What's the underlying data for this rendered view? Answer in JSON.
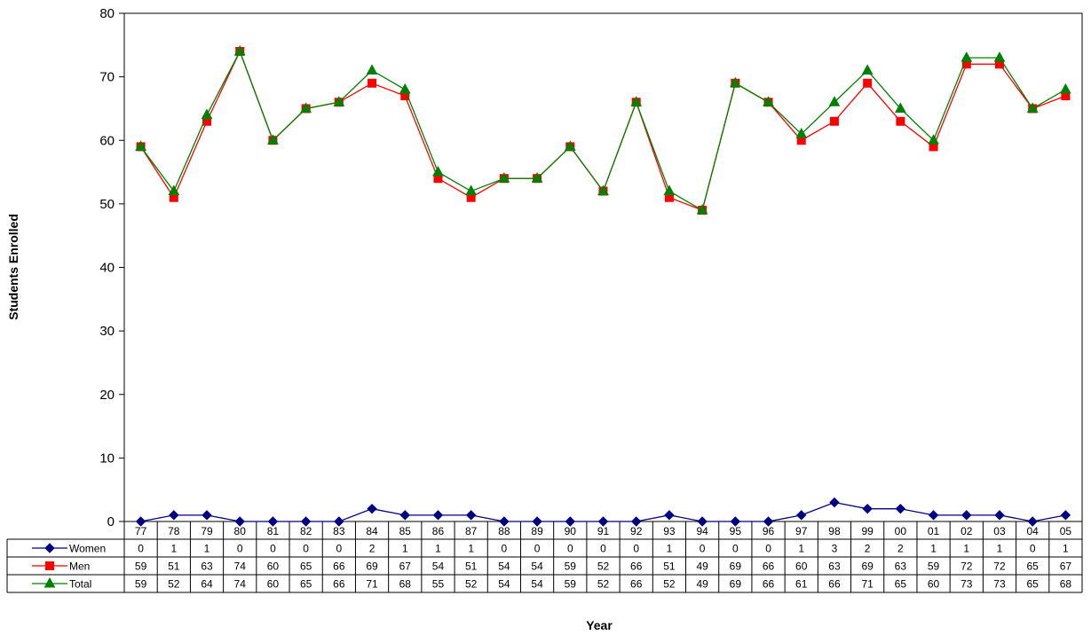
{
  "chart_data": {
    "type": "line",
    "title": "",
    "xlabel": "Year",
    "ylabel": "Students Enrolled",
    "ylim": [
      0,
      80
    ],
    "yticks": [
      0,
      10,
      20,
      30,
      40,
      50,
      60,
      70,
      80
    ],
    "grid": false,
    "legend": "data-table-left",
    "categories": [
      "77",
      "78",
      "79",
      "80",
      "81",
      "82",
      "83",
      "84",
      "85",
      "86",
      "87",
      "88",
      "89",
      "90",
      "91",
      "92",
      "93",
      "94",
      "95",
      "96",
      "97",
      "98",
      "99",
      "00",
      "01",
      "02",
      "03",
      "04",
      "05"
    ],
    "series": [
      {
        "name": "Women",
        "color": "#000080",
        "marker": "diamond",
        "values": [
          0,
          1,
          1,
          0,
          0,
          0,
          0,
          2,
          1,
          1,
          1,
          0,
          0,
          0,
          0,
          0,
          1,
          0,
          0,
          0,
          1,
          3,
          2,
          2,
          1,
          1,
          1,
          0,
          1
        ]
      },
      {
        "name": "Men",
        "color": "#ff0000",
        "marker": "square",
        "values": [
          59,
          51,
          63,
          74,
          60,
          65,
          66,
          69,
          67,
          54,
          51,
          54,
          54,
          59,
          52,
          66,
          51,
          49,
          69,
          66,
          60,
          63,
          69,
          63,
          59,
          72,
          72,
          65,
          67
        ]
      },
      {
        "name": "Total",
        "color": "#008000",
        "marker": "triangle",
        "values": [
          59,
          52,
          64,
          74,
          60,
          65,
          66,
          71,
          68,
          55,
          52,
          54,
          54,
          59,
          52,
          66,
          52,
          49,
          69,
          66,
          61,
          66,
          71,
          65,
          60,
          73,
          73,
          65,
          68
        ]
      }
    ]
  }
}
